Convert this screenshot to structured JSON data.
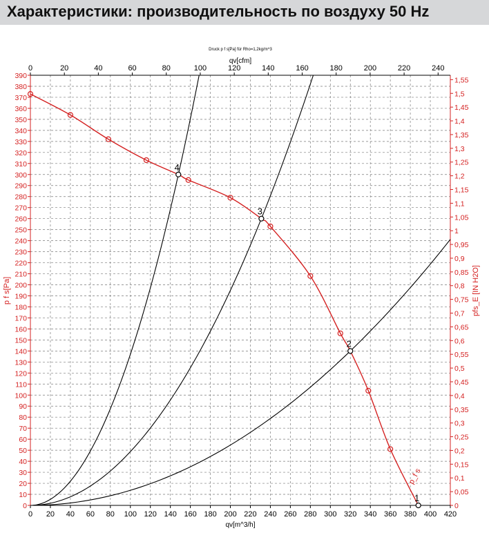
{
  "page": {
    "title": "Характеристики: производительность по воздуху 50 Hz"
  },
  "chart_data": {
    "type": "line",
    "title": "Druck p f s[Pa] für Rho=1,2kg/m^3",
    "xlabel": "qv[m^3/h]",
    "x2label": "qv[cfm]",
    "ylabel": "p f s[Pa]",
    "y2label": "pfs_E [IN H2O]",
    "xlim": [
      0,
      420
    ],
    "x2lim": [
      0,
      247.2
    ],
    "ylim": [
      0,
      390
    ],
    "y2lim": [
      0,
      1.566
    ],
    "grid": true,
    "x_ticks": [
      "0",
      "20",
      "40",
      "60",
      "80",
      "100",
      "120",
      "140",
      "160",
      "180",
      "200",
      "220",
      "240",
      "260",
      "280",
      "300",
      "320",
      "340",
      "360",
      "380",
      "400",
      "420"
    ],
    "x2_ticks": [
      "0",
      "20",
      "40",
      "60",
      "80",
      "100",
      "120",
      "140",
      "160",
      "180",
      "200",
      "220",
      "240"
    ],
    "y_ticks": [
      "0",
      "10",
      "20",
      "30",
      "40",
      "50",
      "60",
      "70",
      "80",
      "90",
      "100",
      "110",
      "120",
      "130",
      "140",
      "150",
      "160",
      "170",
      "180",
      "190",
      "200",
      "210",
      "220",
      "230",
      "240",
      "250",
      "260",
      "270",
      "280",
      "290",
      "300",
      "310",
      "320",
      "330",
      "340",
      "350",
      "360",
      "370",
      "380",
      "390"
    ],
    "y2_ticks": [
      "0",
      "0,05",
      "0,1",
      "0,15",
      "0,2",
      "0,25",
      "0,3",
      "0,35",
      "0,4",
      "0,45",
      "0,5",
      "0,55",
      "0,6",
      "0,65",
      "0,7",
      "0,75",
      "0,8",
      "0,85",
      "0,9",
      "0,95",
      "1",
      "1,05",
      "1,1",
      "1,15",
      "1,2",
      "1,25",
      "1,3",
      "1,35",
      "1,4",
      "1,45",
      "1,5",
      "1,55"
    ],
    "colors": {
      "fan_curve": "#d42020",
      "system_curves": "#000000",
      "axis": "#d42020",
      "grid": "#7a7a7a"
    },
    "series": [
      {
        "name": "p_f s",
        "color": "#d42020",
        "x": [
          0,
          40,
          78,
          116,
          148,
          158,
          200,
          231,
          240,
          280,
          310,
          320,
          338,
          360,
          388
        ],
        "y": [
          373,
          354,
          332,
          313,
          300,
          295,
          279,
          260,
          253,
          208,
          156,
          140,
          104,
          51,
          0
        ]
      }
    ],
    "marker_points": [
      {
        "x": 0,
        "y": 373
      },
      {
        "x": 40,
        "y": 354
      },
      {
        "x": 78,
        "y": 332
      },
      {
        "x": 116,
        "y": 313
      },
      {
        "x": 158,
        "y": 295
      },
      {
        "x": 200,
        "y": 279
      },
      {
        "x": 240,
        "y": 253
      },
      {
        "x": 280,
        "y": 208
      },
      {
        "x": 310,
        "y": 156
      },
      {
        "x": 338,
        "y": 104
      },
      {
        "x": 360,
        "y": 51
      }
    ],
    "system_curves": [
      {
        "name": "4",
        "k": 300,
        "x_ref": 148
      },
      {
        "name": "3",
        "k": 260,
        "x_ref": 231
      },
      {
        "name": "2",
        "k": 140,
        "x_ref": 320
      }
    ],
    "operating_points": [
      {
        "label": "4",
        "x": 148,
        "y": 300
      },
      {
        "label": "3",
        "x": 231,
        "y": 260
      },
      {
        "label": "2",
        "x": 320,
        "y": 140
      },
      {
        "label": "1",
        "x": 388,
        "y": 0
      }
    ]
  }
}
